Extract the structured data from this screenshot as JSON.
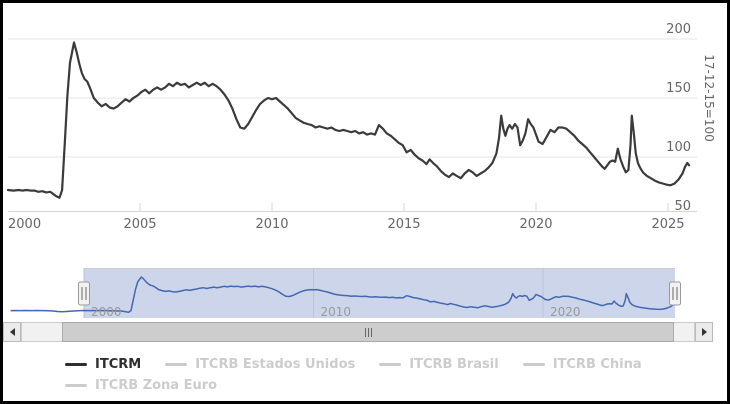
{
  "chart_data": {
    "type": "line",
    "title": "",
    "y_axis_title": "17-12-15=100",
    "y_ticks": [
      200,
      150,
      100,
      50
    ],
    "x_ticks": [
      2000,
      2005,
      2010,
      2015,
      2020,
      2025
    ],
    "navigator_x_labels": [
      2000,
      2010,
      2020
    ],
    "visible_range": [
      2000,
      2025.9
    ],
    "full_range": [
      1996.8,
      2025.9
    ],
    "ylim_main": [
      54,
      203
    ],
    "grid": true,
    "legend_position": "bottom",
    "colors": {
      "main_line": "#3b3b3b",
      "navigator_line": "#4468b0",
      "navigator_mask": "#ccd5ea",
      "navigator_gridline": "#b9c4db",
      "gridline": "#e6e6e6",
      "axis_line": "#ccd6eb",
      "axis_label": "#666666",
      "navigator_label": "#999999",
      "legend_active": "#2f2f2f",
      "legend_inactive": "#cccccc"
    },
    "series": [
      {
        "name": "ITCRM",
        "points": [
          [
            1996.8,
            71.5
          ],
          [
            1997,
            72
          ],
          [
            1997.2,
            71.5
          ],
          [
            1997.45,
            72
          ],
          [
            1997.7,
            71.5
          ],
          [
            1997.95,
            72
          ],
          [
            1998.2,
            71.5
          ],
          [
            1998.45,
            71
          ],
          [
            1998.65,
            70
          ],
          [
            1998.85,
            68
          ],
          [
            1999.05,
            67
          ],
          [
            1999.25,
            68
          ],
          [
            1999.45,
            69.5
          ],
          [
            1999.65,
            70.5
          ],
          [
            1999.85,
            71.5
          ],
          [
            2000,
            72
          ],
          [
            2000.2,
            71.5
          ],
          [
            2000.4,
            72
          ],
          [
            2000.55,
            71.5
          ],
          [
            2000.7,
            72
          ],
          [
            2000.85,
            71.5
          ],
          [
            2001,
            71.5
          ],
          [
            2001.15,
            70.5
          ],
          [
            2001.3,
            71
          ],
          [
            2001.45,
            70
          ],
          [
            2001.6,
            70.5
          ],
          [
            2001.75,
            68
          ],
          [
            2001.85,
            66.5
          ],
          [
            2001.95,
            65.5
          ],
          [
            2002.05,
            72
          ],
          [
            2002.15,
            112
          ],
          [
            2002.25,
            152
          ],
          [
            2002.35,
            180
          ],
          [
            2002.5,
            197
          ],
          [
            2002.6,
            189
          ],
          [
            2002.7,
            179
          ],
          [
            2002.8,
            171
          ],
          [
            2002.9,
            166
          ],
          [
            2003,
            164
          ],
          [
            2003.1,
            159
          ],
          [
            2003.25,
            150
          ],
          [
            2003.4,
            146
          ],
          [
            2003.55,
            143
          ],
          [
            2003.7,
            145
          ],
          [
            2003.85,
            142
          ],
          [
            2004,
            141
          ],
          [
            2004.15,
            143
          ],
          [
            2004.3,
            146
          ],
          [
            2004.45,
            149
          ],
          [
            2004.6,
            147
          ],
          [
            2004.75,
            150
          ],
          [
            2004.9,
            152
          ],
          [
            2005.05,
            155
          ],
          [
            2005.2,
            157
          ],
          [
            2005.35,
            154
          ],
          [
            2005.5,
            157
          ],
          [
            2005.65,
            159
          ],
          [
            2005.8,
            157
          ],
          [
            2005.95,
            159
          ],
          [
            2006.1,
            162
          ],
          [
            2006.25,
            160
          ],
          [
            2006.4,
            163
          ],
          [
            2006.55,
            161
          ],
          [
            2006.7,
            162
          ],
          [
            2006.85,
            159
          ],
          [
            2007,
            161
          ],
          [
            2007.15,
            163
          ],
          [
            2007.3,
            161
          ],
          [
            2007.45,
            163
          ],
          [
            2007.6,
            160
          ],
          [
            2007.75,
            162
          ],
          [
            2007.9,
            160
          ],
          [
            2008.05,
            157
          ],
          [
            2008.2,
            153
          ],
          [
            2008.35,
            148
          ],
          [
            2008.5,
            141
          ],
          [
            2008.65,
            132
          ],
          [
            2008.8,
            125
          ],
          [
            2008.95,
            124
          ],
          [
            2009.1,
            128
          ],
          [
            2009.25,
            134
          ],
          [
            2009.4,
            140
          ],
          [
            2009.55,
            145
          ],
          [
            2009.7,
            148
          ],
          [
            2009.85,
            150
          ],
          [
            2010,
            149
          ],
          [
            2010.15,
            150
          ],
          [
            2010.3,
            147
          ],
          [
            2010.45,
            144
          ],
          [
            2010.6,
            141
          ],
          [
            2010.75,
            137
          ],
          [
            2010.9,
            133
          ],
          [
            2011.05,
            131
          ],
          [
            2011.2,
            129
          ],
          [
            2011.35,
            128
          ],
          [
            2011.5,
            127
          ],
          [
            2011.65,
            125
          ],
          [
            2011.8,
            126
          ],
          [
            2011.95,
            125
          ],
          [
            2012.1,
            124
          ],
          [
            2012.25,
            125
          ],
          [
            2012.4,
            123
          ],
          [
            2012.55,
            122
          ],
          [
            2012.7,
            123
          ],
          [
            2012.85,
            122
          ],
          [
            2013,
            121
          ],
          [
            2013.15,
            122
          ],
          [
            2013.3,
            120
          ],
          [
            2013.45,
            121
          ],
          [
            2013.6,
            119
          ],
          [
            2013.75,
            120
          ],
          [
            2013.9,
            119
          ],
          [
            2014.05,
            127
          ],
          [
            2014.2,
            124
          ],
          [
            2014.35,
            120
          ],
          [
            2014.5,
            118
          ],
          [
            2014.65,
            115
          ],
          [
            2014.8,
            112
          ],
          [
            2014.95,
            110
          ],
          [
            2015.1,
            104
          ],
          [
            2015.25,
            106
          ],
          [
            2015.4,
            102
          ],
          [
            2015.55,
            99
          ],
          [
            2015.7,
            97
          ],
          [
            2015.85,
            94
          ],
          [
            2015.97,
            98
          ],
          [
            2016.1,
            95
          ],
          [
            2016.25,
            92
          ],
          [
            2016.4,
            88
          ],
          [
            2016.55,
            85
          ],
          [
            2016.7,
            83
          ],
          [
            2016.85,
            86
          ],
          [
            2017,
            84
          ],
          [
            2017.15,
            82
          ],
          [
            2017.3,
            86
          ],
          [
            2017.45,
            89
          ],
          [
            2017.6,
            87
          ],
          [
            2017.75,
            84
          ],
          [
            2017.9,
            86
          ],
          [
            2018.05,
            88
          ],
          [
            2018.2,
            91
          ],
          [
            2018.35,
            95
          ],
          [
            2018.5,
            103
          ],
          [
            2018.6,
            116
          ],
          [
            2018.68,
            135
          ],
          [
            2018.76,
            124
          ],
          [
            2018.84,
            118
          ],
          [
            2018.92,
            124
          ],
          [
            2019,
            127
          ],
          [
            2019.1,
            124
          ],
          [
            2019.2,
            128
          ],
          [
            2019.3,
            125
          ],
          [
            2019.4,
            110
          ],
          [
            2019.5,
            114
          ],
          [
            2019.6,
            120
          ],
          [
            2019.7,
            132
          ],
          [
            2019.8,
            128
          ],
          [
            2019.9,
            125
          ],
          [
            2020,
            119
          ],
          [
            2020.1,
            113
          ],
          [
            2020.25,
            111
          ],
          [
            2020.4,
            117
          ],
          [
            2020.55,
            123
          ],
          [
            2020.7,
            121
          ],
          [
            2020.85,
            125
          ],
          [
            2021,
            125
          ],
          [
            2021.15,
            124
          ],
          [
            2021.3,
            121
          ],
          [
            2021.45,
            118
          ],
          [
            2021.6,
            114
          ],
          [
            2021.75,
            111
          ],
          [
            2021.9,
            108
          ],
          [
            2022.05,
            104
          ],
          [
            2022.2,
            100
          ],
          [
            2022.35,
            96
          ],
          [
            2022.5,
            92
          ],
          [
            2022.6,
            90
          ],
          [
            2022.7,
            93
          ],
          [
            2022.8,
            96
          ],
          [
            2022.9,
            97
          ],
          [
            2023,
            96
          ],
          [
            2023.1,
            107
          ],
          [
            2023.2,
            98
          ],
          [
            2023.3,
            92
          ],
          [
            2023.4,
            87
          ],
          [
            2023.5,
            89
          ],
          [
            2023.58,
            110
          ],
          [
            2023.63,
            135
          ],
          [
            2023.7,
            121
          ],
          [
            2023.78,
            103
          ],
          [
            2023.86,
            95
          ],
          [
            2023.94,
            91
          ],
          [
            2024.05,
            87
          ],
          [
            2024.2,
            84
          ],
          [
            2024.35,
            82
          ],
          [
            2024.5,
            80
          ],
          [
            2024.65,
            78.5
          ],
          [
            2024.8,
            77.5
          ],
          [
            2024.95,
            76.5
          ],
          [
            2025.1,
            76
          ],
          [
            2025.25,
            77.5
          ],
          [
            2025.4,
            81
          ],
          [
            2025.55,
            86
          ],
          [
            2025.65,
            92
          ],
          [
            2025.73,
            95
          ],
          [
            2025.8,
            93
          ]
        ]
      }
    ]
  },
  "legend": {
    "items": [
      {
        "label": "ITCRM",
        "active": true
      },
      {
        "label": "ITCRB Estados Unidos",
        "active": false
      },
      {
        "label": "ITCRB Brasil",
        "active": false
      },
      {
        "label": "ITCRB China",
        "active": false
      },
      {
        "label": "ITCRB Zona Euro",
        "active": false
      }
    ]
  }
}
